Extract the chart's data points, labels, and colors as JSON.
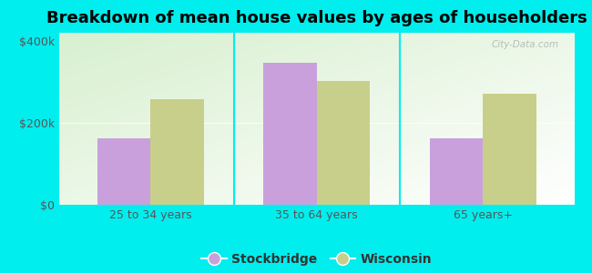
{
  "title": "Breakdown of mean house values by ages of householders",
  "categories": [
    "25 to 34 years",
    "35 to 64 years",
    "65 years+"
  ],
  "stockbridge_values": [
    162000,
    347000,
    162000
  ],
  "wisconsin_values": [
    258000,
    302000,
    272000
  ],
  "stockbridge_color": "#c9a0dc",
  "wisconsin_color": "#c8cf8a",
  "background_color": "#00eeee",
  "ylim": [
    0,
    420000
  ],
  "yticks": [
    0,
    200000,
    400000
  ],
  "ytick_labels": [
    "$0",
    "$200k",
    "$400k"
  ],
  "bar_width": 0.32,
  "legend_labels": [
    "Stockbridge",
    "Wisconsin"
  ],
  "title_fontsize": 13,
  "tick_fontsize": 9,
  "legend_fontsize": 10,
  "watermark": "City-Data.com"
}
